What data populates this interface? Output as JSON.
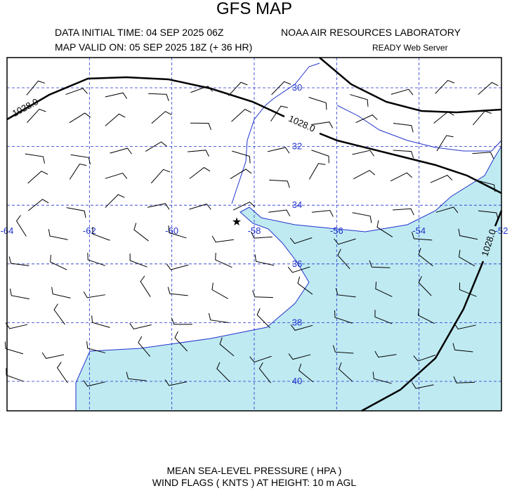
{
  "header": {
    "title": "GFS MAP",
    "initial_time": "DATA INITIAL TIME: 04 SEP 2025 06Z",
    "lab": "NOAA AIR RESOURCES LABORATORY",
    "valid": "MAP VALID ON: 05 SEP 2025 18Z (+ 36 HR)",
    "server": "READY Web Server"
  },
  "map": {
    "lon_labels": [
      "-64",
      "-62",
      "-60",
      "-58",
      "-56",
      "-54",
      "-52"
    ],
    "lat_labels": [
      "30",
      "32",
      "34",
      "36",
      "38",
      "40"
    ],
    "contour_labels": [
      "1028.0",
      "1028.0",
      "1028.0"
    ]
  },
  "footer": {
    "line1": "MEAN SEA-LEVEL PRESSURE ( HPA  )",
    "line2": "WIND FLAGS ( KNTS ) AT HEIGHT: 10 m AGL"
  }
}
